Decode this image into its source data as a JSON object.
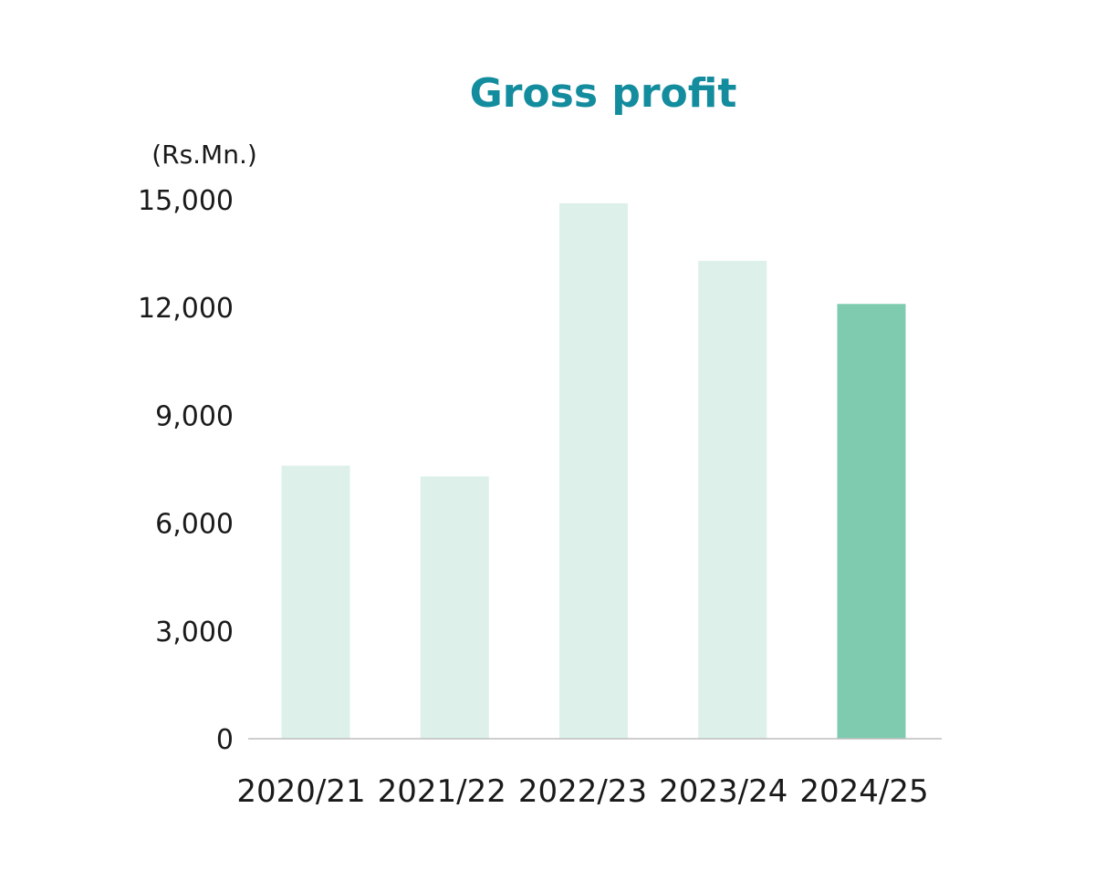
{
  "chart_data": {
    "type": "bar",
    "title": "Gross profit",
    "unit_label": "(Rs.Mn.)",
    "xlabel": "",
    "ylabel": "",
    "categories": [
      "2020/21",
      "2021/22",
      "2022/23",
      "2023/24",
      "2024/25"
    ],
    "series": [
      {
        "values": [
          7600,
          7300,
          14900,
          13300,
          12100
        ]
      }
    ],
    "ylim": [
      0,
      15000
    ],
    "yticks": [
      0,
      3000,
      6000,
      9000,
      12000,
      15000
    ],
    "ytick_labels": [
      "0",
      "3,000",
      "6,000",
      "9,000",
      "12,000",
      "15,000"
    ],
    "highlight_index": 4,
    "grid": false,
    "colors": {
      "title": "#138C9E",
      "bar": "#DDF0EA",
      "bar_highlight": "#7ECBB0",
      "axis": "#BDBDBD",
      "text": "#1A1A1A"
    }
  }
}
